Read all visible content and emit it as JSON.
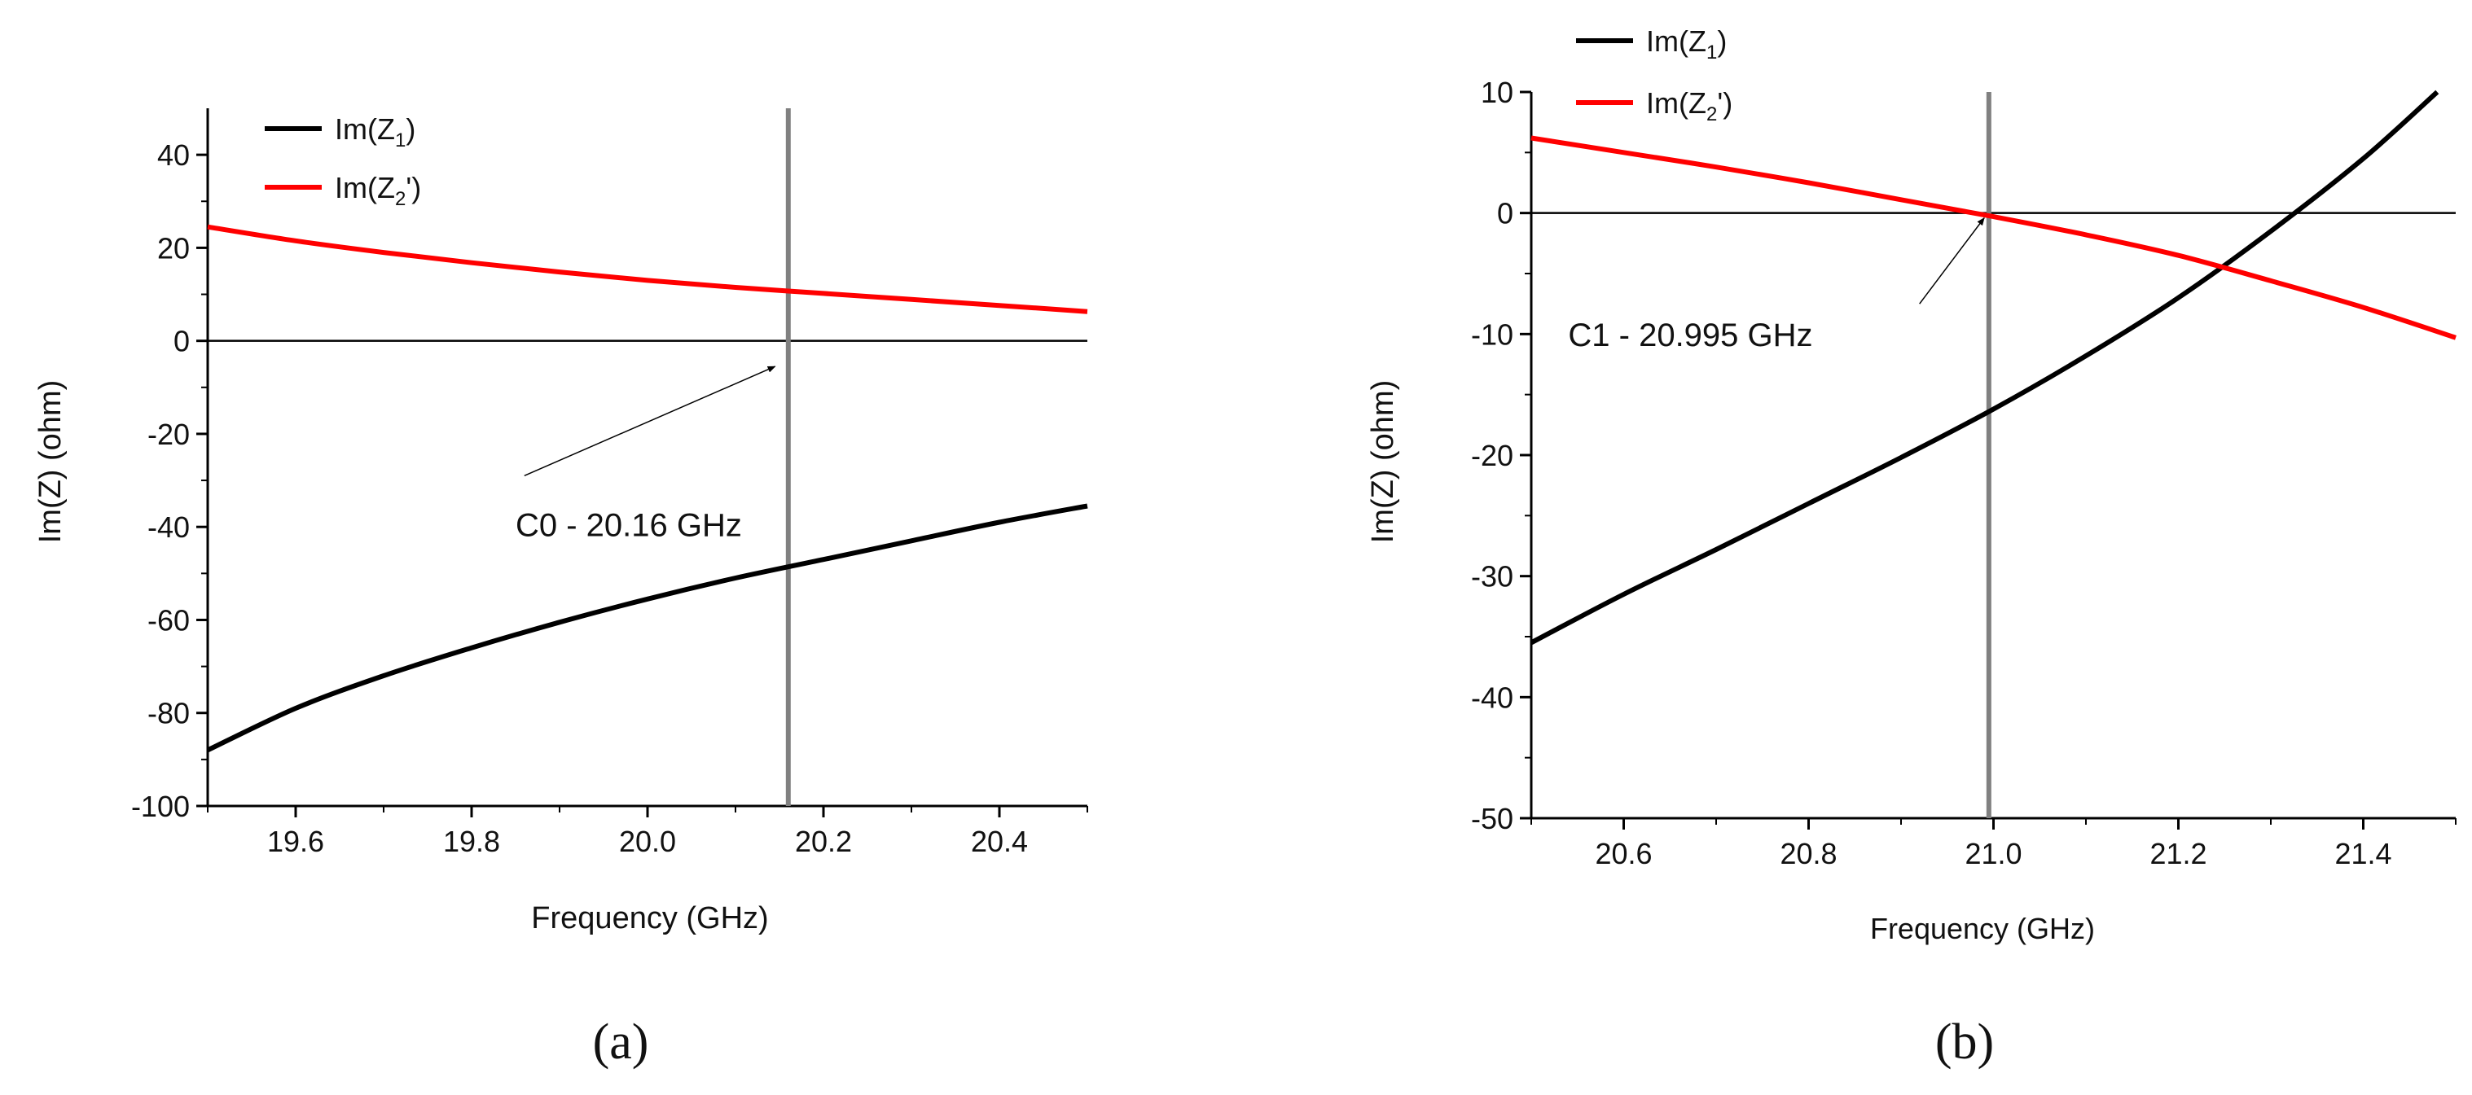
{
  "chart_data": [
    {
      "type": "line",
      "panel_label": "(a)",
      "xlabel": "Frequency (GHz)",
      "ylabel": "Im(Z) (ohm)",
      "xlim": [
        19.5,
        20.5
      ],
      "ylim": [
        -100,
        50
      ],
      "xticks": [
        19.6,
        19.8,
        20.0,
        20.2,
        20.4
      ],
      "xtick_labels": [
        "19.6",
        "19.8",
        "20.0",
        "20.2",
        "20.4"
      ],
      "yticks": [
        -100,
        -80,
        -60,
        -40,
        -20,
        0,
        20,
        40
      ],
      "ytick_labels": [
        "-100",
        "-80",
        "-60",
        "-40",
        "-20",
        "0",
        "20",
        "40"
      ],
      "legend_position": "top-left",
      "series": [
        {
          "name": "Im(Z1)",
          "legend_base": "Im(Z",
          "legend_sub": "1",
          "legend_suffix": ")",
          "color": "#000000",
          "x": [
            19.5,
            19.6,
            19.7,
            19.8,
            19.9,
            20.0,
            20.1,
            20.2,
            20.3,
            20.4,
            20.5
          ],
          "values": [
            -88,
            -79,
            -72,
            -66,
            -60.5,
            -55.5,
            -51,
            -47,
            -43,
            -39,
            -35.5
          ]
        },
        {
          "name": "Im(Z2')",
          "legend_base": "Im(Z",
          "legend_sub": "2",
          "legend_suffix": "')",
          "color": "#ff0000",
          "x": [
            19.5,
            19.6,
            19.7,
            19.8,
            19.9,
            20.0,
            20.1,
            20.2,
            20.3,
            20.4,
            20.5
          ],
          "values": [
            24.5,
            21.5,
            19,
            16.8,
            14.8,
            13,
            11.5,
            10.2,
            8.9,
            7.6,
            6.3
          ]
        }
      ],
      "reference_vline": {
        "x": 20.16,
        "color": "#808080"
      },
      "zero_line": true,
      "annotation": {
        "text": "C0 - 20.16 GHz",
        "text_at": [
          19.85,
          -42
        ],
        "arrow_from": [
          19.86,
          -29
        ],
        "arrow_to": [
          20.145,
          -5.5
        ]
      }
    },
    {
      "type": "line",
      "panel_label": "(b)",
      "xlabel": "Frequency (GHz)",
      "ylabel": "Im(Z) (ohm)",
      "xlim": [
        20.5,
        21.5
      ],
      "ylim": [
        -50,
        10
      ],
      "xticks": [
        20.6,
        20.8,
        21.0,
        21.2,
        21.4
      ],
      "xtick_labels": [
        "20.6",
        "20.8",
        "21.0",
        "21.2",
        "21.4"
      ],
      "yticks": [
        -50,
        -40,
        -30,
        -20,
        -10,
        0,
        10
      ],
      "ytick_labels": [
        "-50",
        "-40",
        "-30",
        "-20",
        "-10",
        "0",
        "10"
      ],
      "legend_position": "top-left",
      "series": [
        {
          "name": "Im(Z1)",
          "legend_base": "Im(Z",
          "legend_sub": "1",
          "legend_suffix": ")",
          "color": "#000000",
          "x": [
            20.5,
            20.6,
            20.7,
            20.8,
            20.9,
            21.0,
            21.1,
            21.2,
            21.3,
            21.4,
            21.48
          ],
          "values": [
            -35.5,
            -31.5,
            -27.8,
            -24,
            -20.2,
            -16.2,
            -11.8,
            -7,
            -1.5,
            4.5,
            10
          ]
        },
        {
          "name": "Im(Z2')",
          "legend_base": "Im(Z",
          "legend_sub": "2",
          "legend_suffix": "')",
          "color": "#ff0000",
          "x": [
            20.5,
            20.6,
            20.7,
            20.8,
            20.9,
            21.0,
            21.1,
            21.2,
            21.3,
            21.4,
            21.5
          ],
          "values": [
            6.2,
            5,
            3.8,
            2.5,
            1.1,
            -0.3,
            -1.8,
            -3.5,
            -5.6,
            -7.8,
            -10.3
          ]
        }
      ],
      "reference_vline": {
        "x": 20.995,
        "color": "#808080"
      },
      "zero_line": true,
      "annotation": {
        "text": "C1 - 20.995 GHz",
        "text_at": [
          20.54,
          -11
        ],
        "arrow_from": [
          20.92,
          -7.5
        ],
        "arrow_to": [
          20.99,
          -0.4
        ]
      }
    }
  ]
}
